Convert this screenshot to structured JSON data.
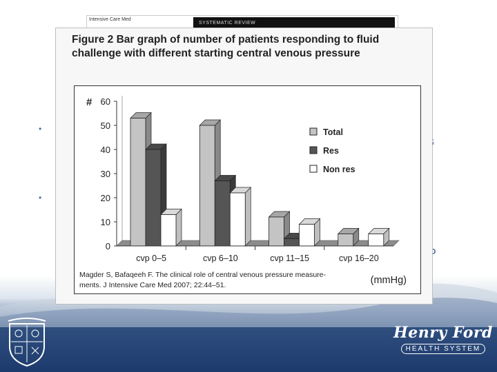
{
  "journal": {
    "name": "Intensive Care Med",
    "banner": "SYSTEMATIC REVIEW"
  },
  "figure": {
    "title": "Figure 2  Bar graph of number of patients responding to fluid challenge with different starting central venous pressure",
    "citation_line1": "Magder S, Bafaqeeh F. The clinical role of central venous pressure measure-",
    "citation_line2": "ments. J Intensive Care Med 2007; 22:44–51."
  },
  "slide_background": {
    "fragments": [
      "s",
      "r",
      "P"
    ]
  },
  "logos": {
    "right_script": "Henry Ford",
    "right_subtitle": "HEALTH SYSTEM"
  },
  "colors": {
    "total": "#c4c4c4",
    "res": "#555555",
    "nonres": "#ffffff",
    "floor": "#8c8c8c",
    "slide_blue": "#1d3a6c"
  },
  "chart_data": {
    "type": "bar",
    "ylabel": "#",
    "unit_label": "(mmHg)",
    "categories": [
      "cvp 0–5",
      "cvp 6–10",
      "cvp 11–15",
      "cvp 16–20"
    ],
    "yticks": [
      0,
      10,
      20,
      30,
      40,
      50,
      60
    ],
    "ylim": [
      0,
      60
    ],
    "legend_position": "top-right",
    "series": [
      {
        "name": "Total",
        "values": [
          53,
          50,
          12,
          5
        ]
      },
      {
        "name": "Res",
        "values": [
          40,
          27,
          3,
          0
        ]
      },
      {
        "name": "Non res",
        "values": [
          13,
          22,
          9,
          5
        ]
      }
    ]
  }
}
